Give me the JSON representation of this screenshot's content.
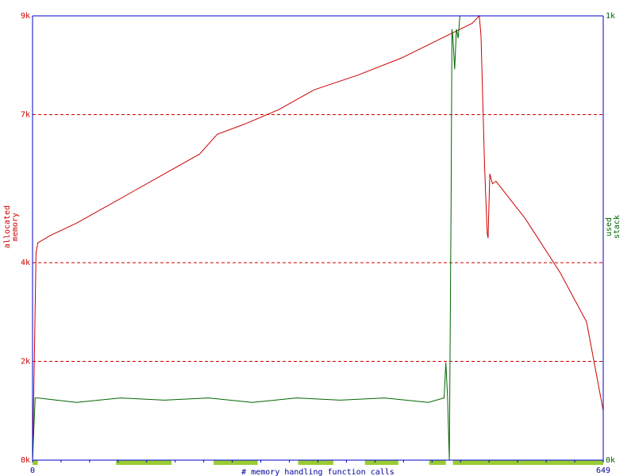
{
  "chart_data": {
    "type": "line",
    "title": "",
    "xlabel": "# memory handling function calls",
    "ylabel_left": [
      "allocated",
      "memory"
    ],
    "ylabel_right": [
      "used",
      "stack"
    ],
    "xlim": [
      0,
      649
    ],
    "ylim_left": [
      0,
      9000
    ],
    "ylim_right": [
      0,
      1000
    ],
    "x_ticks": [
      "0",
      "649"
    ],
    "y_ticks_left": [
      {
        "value": 0,
        "label": "0k"
      },
      {
        "value": 2000,
        "label": "2k"
      },
      {
        "value": 4000,
        "label": "4k"
      },
      {
        "value": 7000,
        "label": "7k"
      },
      {
        "value": 9000,
        "label": "9k"
      }
    ],
    "y_ticks_right": [
      {
        "value": 0,
        "label": "0k"
      },
      {
        "value": 1000,
        "label": "1k"
      }
    ],
    "gridlines_left": [
      2000,
      4000,
      7000
    ],
    "colors": {
      "allocated": "#cc0000",
      "stack": "#006600",
      "axis": "#0000cc",
      "marker": "#99cc33"
    },
    "series": [
      {
        "name": "allocated memory",
        "axis": "left",
        "x": [
          0,
          2,
          4,
          6,
          20,
          50,
          80,
          110,
          150,
          190,
          210,
          240,
          280,
          320,
          370,
          420,
          460,
          500,
          508,
          510,
          514,
          517,
          518,
          520,
          523,
          527,
          560,
          600,
          630,
          649
        ],
        "y": [
          0,
          2000,
          4200,
          4400,
          4550,
          4800,
          5100,
          5400,
          5800,
          6200,
          6600,
          6800,
          7100,
          7500,
          7800,
          8150,
          8500,
          8850,
          9000,
          8600,
          6000,
          4600,
          4500,
          5800,
          5600,
          5650,
          4900,
          3800,
          2800,
          1000
        ]
      },
      {
        "name": "used stack",
        "axis": "right",
        "x": [
          0,
          3,
          6,
          50,
          100,
          150,
          200,
          250,
          300,
          350,
          400,
          450,
          468,
          470,
          472,
          474,
          476,
          477,
          478,
          480,
          482,
          484,
          486,
          490,
          649
        ],
        "y": [
          0,
          140,
          140,
          130,
          140,
          135,
          140,
          130,
          140,
          135,
          140,
          130,
          140,
          220,
          140,
          0,
          580,
          970,
          950,
          880,
          970,
          950,
          1000,
          1000,
          1000
        ]
      }
    ],
    "x_markers": [
      [
        0,
        6
      ],
      [
        95,
        158
      ],
      [
        206,
        256
      ],
      [
        302,
        342
      ],
      [
        378,
        416
      ],
      [
        451,
        470
      ],
      [
        478,
        649
      ]
    ]
  }
}
